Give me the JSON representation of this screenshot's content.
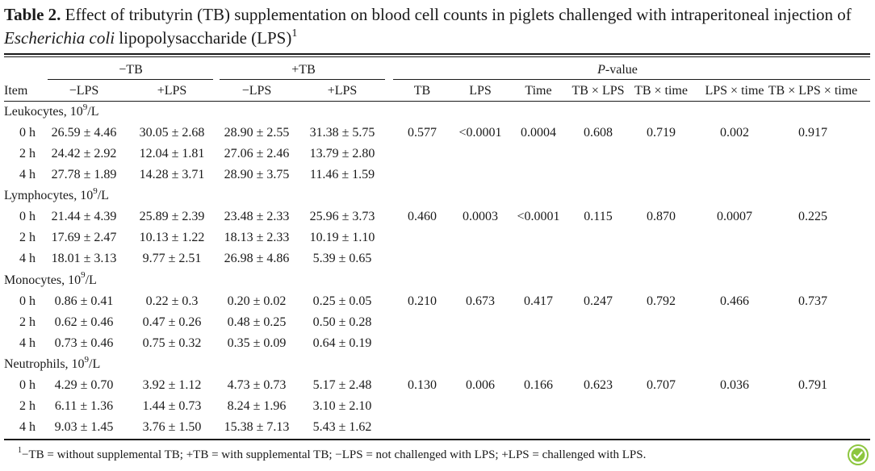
{
  "caption": {
    "label": "Table 2.",
    "text_before_italic": "Effect of tributyrin (TB) supplementation on blood cell counts in piglets challenged with intraperitoneal injection of",
    "italic": "Escherichia coli",
    "text_after_italic": "lipopolysaccharide (LPS)",
    "footnote_mark": "1"
  },
  "header": {
    "groups": [
      "−TB",
      "+TB"
    ],
    "pvalue_group_italic": "P",
    "pvalue_group_rest": "-value",
    "item_label": "Item",
    "treatment_cols": [
      "−LPS",
      "+LPS",
      "−LPS",
      "+LPS"
    ],
    "pvalue_cols": [
      "TB",
      "LPS",
      "Time",
      "TB × LPS",
      "TB × time",
      "LPS × time",
      "TB × LPS × time"
    ]
  },
  "sections": [
    {
      "name": "Leukocytes, 10",
      "unit_exp": "9",
      "unit_rest": "/L",
      "pvalues": [
        "0.577",
        "<0.0001",
        "0.0004",
        "0.608",
        "0.719",
        "0.002",
        "0.917"
      ],
      "rows": [
        {
          "time": "0 h",
          "values": [
            "26.59 ± 4.46",
            "30.05 ± 2.68",
            "28.90 ± 2.55",
            "31.38 ± 5.75"
          ]
        },
        {
          "time": "2 h",
          "values": [
            "24.42 ± 2.92",
            "12.04 ± 1.81",
            "27.06 ± 2.46",
            "13.79 ± 2.80"
          ]
        },
        {
          "time": "4 h",
          "values": [
            "27.78 ± 1.89",
            "14.28 ± 3.71",
            "28.90 ± 3.75",
            "11.46 ± 1.59"
          ]
        }
      ]
    },
    {
      "name": "Lymphocytes, 10",
      "unit_exp": "9",
      "unit_rest": "/L",
      "pvalues": [
        "0.460",
        "0.0003",
        "<0.0001",
        "0.115",
        "0.870",
        "0.0007",
        "0.225"
      ],
      "rows": [
        {
          "time": "0 h",
          "values": [
            "21.44 ± 4.39",
            "25.89 ± 2.39",
            "23.48 ± 2.33",
            "25.96 ± 3.73"
          ]
        },
        {
          "time": "2 h",
          "values": [
            "17.69 ± 2.47",
            "10.13 ± 1.22",
            "18.13 ± 2.33",
            "10.19 ± 1.10"
          ]
        },
        {
          "time": "4 h",
          "values": [
            "18.01 ± 3.13",
            "9.77 ± 2.51",
            "26.98 ± 4.86",
            "5.39 ± 0.65"
          ]
        }
      ]
    },
    {
      "name": "Monocytes, 10",
      "unit_exp": "9",
      "unit_rest": "/L",
      "pvalues": [
        "0.210",
        "0.673",
        "0.417",
        "0.247",
        "0.792",
        "0.466",
        "0.737"
      ],
      "rows": [
        {
          "time": "0 h",
          "values": [
            "0.86 ± 0.41",
            "0.22 ± 0.3",
            "0.20 ± 0.02",
            "0.25 ± 0.05"
          ]
        },
        {
          "time": "2 h",
          "values": [
            "0.62 ± 0.46",
            "0.47 ± 0.26",
            "0.48 ± 0.25",
            "0.50 ± 0.28"
          ]
        },
        {
          "time": "4 h",
          "values": [
            "0.73 ± 0.46",
            "0.75 ± 0.32",
            "0.35 ± 0.09",
            "0.64 ± 0.19"
          ]
        }
      ]
    },
    {
      "name": "Neutrophils, 10",
      "unit_exp": "9",
      "unit_rest": "/L",
      "pvalues": [
        "0.130",
        "0.006",
        "0.166",
        "0.623",
        "0.707",
        "0.036",
        "0.791"
      ],
      "rows": [
        {
          "time": "0 h",
          "values": [
            "4.29 ± 0.70",
            "3.92 ± 1.12",
            "4.73 ± 0.73",
            "5.17 ± 2.48"
          ]
        },
        {
          "time": "2 h",
          "values": [
            "6.11 ± 1.36",
            "1.44 ± 0.73",
            "8.24 ± 1.96",
            "3.10 ± 2.10"
          ]
        },
        {
          "time": "4 h",
          "values": [
            "9.03 ± 1.45",
            "3.76 ± 1.50",
            "15.38 ± 7.13",
            "5.43 ± 1.62"
          ]
        }
      ]
    }
  ],
  "footnote": {
    "mark": "1",
    "text": "−TB = without supplemental TB; +TB = with supplemental TB; −LPS = not challenged with LPS; +LPS = challenged with LPS."
  },
  "badge": {
    "icon": "checkmark-badge-icon",
    "color": "#8dc63f"
  }
}
